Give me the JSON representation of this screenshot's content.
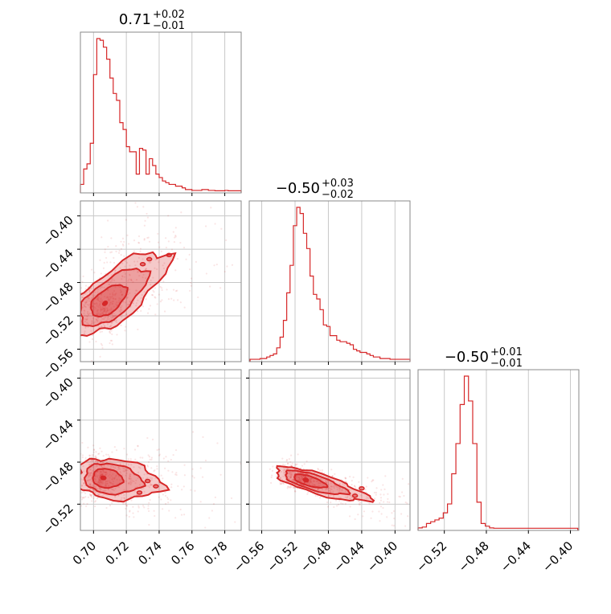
{
  "chart_data": {
    "type": "corner",
    "color": "#d62728",
    "parameters": [
      {
        "title_value": "0.71",
        "title_plus": "+0.02",
        "title_minus": "−0.01",
        "range": [
          0.692,
          0.79
        ],
        "ticks": [
          0.7,
          0.72,
          0.74,
          0.76,
          0.78
        ],
        "tick_labels": [
          "0.70",
          "0.72",
          "0.74",
          "0.76",
          "0.78"
        ],
        "hist_x": [
          0.693,
          0.695,
          0.697,
          0.699,
          0.701,
          0.703,
          0.705,
          0.707,
          0.709,
          0.711,
          0.713,
          0.715,
          0.717,
          0.719,
          0.721,
          0.723,
          0.725,
          0.727,
          0.729,
          0.731,
          0.733,
          0.735,
          0.737,
          0.739,
          0.741,
          0.743,
          0.745,
          0.747,
          0.749,
          0.751,
          0.753,
          0.755,
          0.757,
          0.759,
          0.761,
          0.763,
          0.765,
          0.767,
          0.769,
          0.771,
          0.773,
          0.775,
          0.777,
          0.779,
          0.781,
          0.783,
          0.785,
          0.787,
          0.789
        ],
        "hist_y": [
          4,
          13,
          16,
          28,
          68,
          89,
          88,
          84,
          77,
          66,
          57,
          53,
          40,
          36,
          26,
          23,
          23,
          10,
          25,
          24,
          10,
          19,
          15,
          10,
          8,
          6,
          5,
          4,
          4,
          3,
          3,
          2,
          1,
          1,
          0.5,
          0.5,
          0.5,
          1,
          1,
          0.5,
          0.5,
          0.3,
          0.3,
          0.3,
          0.5,
          0.3,
          0.3,
          0.3,
          0.3
        ]
      },
      {
        "title_value": "−0.50",
        "title_plus": "+0.03",
        "title_minus": "−0.02",
        "range": [
          -0.575,
          -0.382
        ],
        "ticks": [
          -0.56,
          -0.52,
          -0.48,
          -0.44,
          -0.4
        ],
        "tick_labels": [
          "−0.56",
          "−0.52",
          "−0.48",
          "−0.44",
          "−0.40"
        ],
        "hist_x": [
          -0.572,
          -0.568,
          -0.564,
          -0.56,
          -0.556,
          -0.552,
          -0.548,
          -0.544,
          -0.54,
          -0.536,
          -0.532,
          -0.528,
          -0.524,
          -0.52,
          -0.516,
          -0.512,
          -0.508,
          -0.504,
          -0.5,
          -0.496,
          -0.492,
          -0.488,
          -0.484,
          -0.48,
          -0.476,
          -0.472,
          -0.468,
          -0.464,
          -0.46,
          -0.456,
          -0.452,
          -0.448,
          -0.444,
          -0.44,
          -0.436,
          -0.432,
          -0.428,
          -0.424,
          -0.42,
          -0.416,
          -0.412,
          -0.408,
          -0.404,
          -0.4,
          -0.396,
          -0.392,
          -0.388,
          -0.384
        ],
        "hist_y": [
          0.5,
          0.5,
          0.5,
          1,
          1,
          2,
          3,
          4,
          8,
          15,
          26,
          44,
          62,
          88,
          100,
          96,
          83,
          73,
          55,
          43,
          40,
          33,
          23,
          22,
          16,
          16,
          13,
          12,
          12,
          11,
          10,
          7,
          6,
          5,
          5,
          4,
          3,
          2,
          2,
          1,
          1,
          1,
          0.5,
          0.5,
          0.5,
          0.5,
          0.5,
          0.5
        ]
      },
      {
        "title_value": "−0.50",
        "title_plus": "+0.01",
        "title_minus": "−0.01",
        "range": [
          -0.545,
          -0.392
        ],
        "ticks": [
          -0.52,
          -0.48,
          -0.44,
          -0.4
        ],
        "tick_labels": [
          "−0.52",
          "−0.48",
          "−0.44",
          "−0.40"
        ],
        "hist_x": [
          -0.543,
          -0.539,
          -0.535,
          -0.531,
          -0.527,
          -0.523,
          -0.519,
          -0.515,
          -0.511,
          -0.507,
          -0.503,
          -0.499,
          -0.495,
          -0.491,
          -0.487,
          -0.483,
          -0.479,
          -0.475,
          -0.471,
          -0.467,
          -0.463,
          -0.459,
          -0.455,
          -0.451,
          -0.447,
          -0.443,
          -0.439,
          -0.435,
          -0.431,
          -0.427,
          -0.423,
          -0.419,
          -0.415,
          -0.411,
          -0.407,
          -0.403,
          -0.399,
          -0.395
        ],
        "hist_y": [
          0.5,
          1,
          3,
          4,
          5,
          6,
          9,
          14,
          31,
          48,
          70,
          86,
          72,
          48,
          15,
          3,
          1.5,
          0.5,
          0.3,
          0.3,
          0.3,
          0.3,
          0.3,
          0.3,
          0.3,
          0.3,
          0.3,
          0.3,
          0.3,
          0.3,
          0.3,
          0.3,
          0.3,
          0.3,
          0.3,
          0.3,
          0.3,
          0.3
        ]
      }
    ],
    "panels_2d": [
      {
        "x_param": 0,
        "y_param": 1,
        "center": [
          0.707,
          -0.505
        ],
        "slope": 1.55,
        "along_sd": [
          0.012,
          0.018
        ],
        "perp_sd": 0.006,
        "outlier_islands": [
          [
            0.73,
            -0.458
          ],
          [
            0.734,
            -0.452
          ],
          [
            0.746,
            -0.447
          ]
        ]
      },
      {
        "x_param": 0,
        "y_param": 2,
        "center": [
          0.706,
          -0.495
        ],
        "slope": -0.2,
        "along_sd": [
          0.01,
          0.017
        ],
        "perp_sd": 0.005,
        "outlier_islands": [
          [
            0.738,
            -0.503
          ],
          [
            0.728,
            -0.509
          ],
          [
            0.733,
            -0.498
          ]
        ]
      },
      {
        "x_param": 1,
        "y_param": 2,
        "center": [
          -0.507,
          -0.497
        ],
        "slope": -0.24,
        "along_sd": [
          0.022,
          0.036
        ],
        "perp_sd": 0.005,
        "outlier_islands": [
          [
            -0.44,
            -0.505
          ],
          [
            -0.448,
            -0.512
          ]
        ]
      }
    ],
    "contour_levels": [
      0.3,
      0.6,
      0.9
    ],
    "grid": true,
    "legend": "none"
  }
}
